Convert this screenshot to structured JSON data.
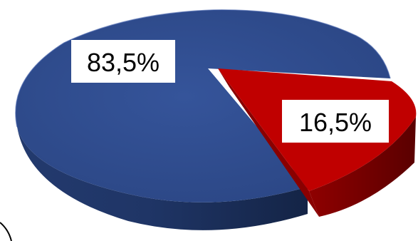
{
  "chart_data": {
    "type": "pie",
    "style": "3d",
    "categories": [
      "",
      ""
    ],
    "values": [
      83.5,
      16.5
    ],
    "data_labels": [
      "83,5%",
      "16,5%"
    ],
    "colors": {
      "slice_1_top": "#2f4d8c",
      "slice_1_side": "#1c2f5e",
      "slice_2_top": "#c00000",
      "slice_2_side": "#7a0000"
    },
    "title": "",
    "legend": "none"
  }
}
